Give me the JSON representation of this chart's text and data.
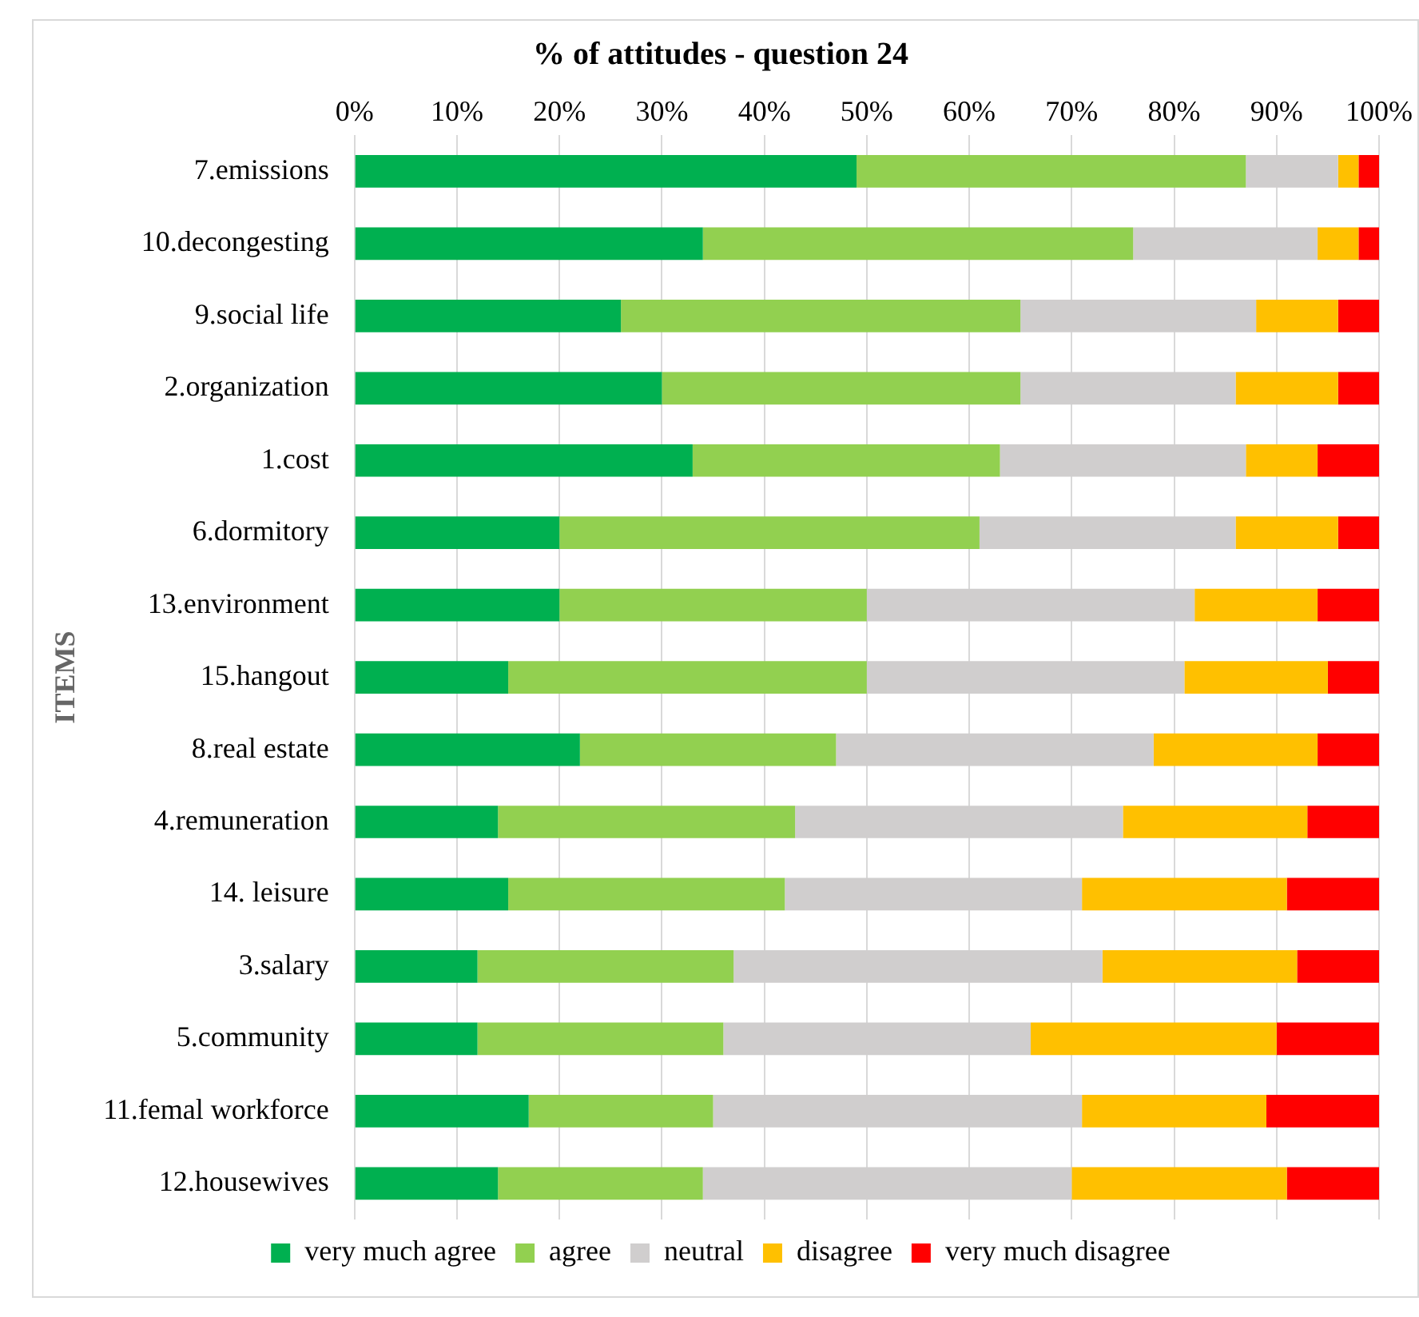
{
  "chart_data": {
    "type": "bar",
    "orientation": "horizontal",
    "stacked": true,
    "title": "% of attitudes - question 24",
    "ylabel": "ITEMS",
    "categories": [
      "7.emissions",
      "10.decongesting",
      "9.social life",
      "2.organization",
      "1.cost",
      "6.dormitory",
      "13.environment",
      "15.hangout",
      "8.real estate",
      "4.remuneration",
      "14. leisure",
      "3.salary",
      "5.community",
      "11.femal workforce",
      "12.housewives"
    ],
    "series": [
      {
        "name": "very much agree",
        "color": "#00b050",
        "values": [
          49,
          34,
          26,
          30,
          33,
          20,
          20,
          15,
          22,
          14,
          15,
          12,
          12,
          17,
          14
        ]
      },
      {
        "name": "agree",
        "color": "#92d050",
        "values": [
          38,
          42,
          39,
          35,
          30,
          41,
          30,
          35,
          25,
          29,
          27,
          25,
          24,
          18,
          20
        ]
      },
      {
        "name": "neutral",
        "color": "#d0cece",
        "values": [
          9,
          18,
          23,
          21,
          24,
          25,
          32,
          31,
          31,
          32,
          29,
          36,
          30,
          36,
          36
        ]
      },
      {
        "name": "disagree",
        "color": "#ffc000",
        "values": [
          2,
          4,
          8,
          10,
          7,
          10,
          12,
          14,
          16,
          18,
          20,
          19,
          24,
          18,
          21
        ]
      },
      {
        "name": "very much disagree",
        "color": "#ff0000",
        "values": [
          2,
          2,
          4,
          4,
          6,
          4,
          6,
          5,
          6,
          7,
          9,
          8,
          10,
          11,
          9
        ]
      }
    ],
    "xlim": [
      0,
      100
    ],
    "xticks": [
      {
        "value": 0,
        "label": "0%"
      },
      {
        "value": 10,
        "label": "10%"
      },
      {
        "value": 20,
        "label": "20%"
      },
      {
        "value": 30,
        "label": "30%"
      },
      {
        "value": 40,
        "label": "40%"
      },
      {
        "value": 50,
        "label": "50%"
      },
      {
        "value": 60,
        "label": "60%"
      },
      {
        "value": 70,
        "label": "70%"
      },
      {
        "value": 80,
        "label": "80%"
      },
      {
        "value": 90,
        "label": "90%"
      },
      {
        "value": 100,
        "label": "100%"
      }
    ],
    "grid": "x",
    "legend": "bottom"
  }
}
